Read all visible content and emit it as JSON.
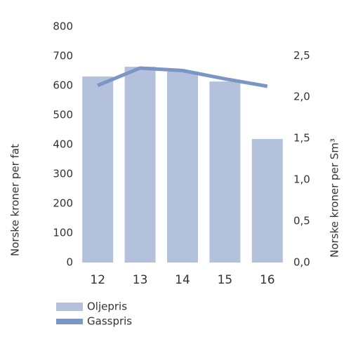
{
  "chart_data": {
    "type": "bar",
    "categories": [
      "12",
      "13",
      "14",
      "15",
      "16"
    ],
    "series": [
      {
        "name": "Oljepris",
        "type": "bar",
        "color": "#b4c1dc",
        "values": [
          631,
          664,
          648,
          614,
          419
        ]
      },
      {
        "name": "Gasspris",
        "type": "line",
        "axis": "y2",
        "color": "#7b96c4",
        "values": [
          2.14,
          2.35,
          2.32,
          2.22,
          2.13
        ]
      }
    ],
    "ylabel": "Norske kroner per fat",
    "y2label": "Norske kroner per Sm³",
    "ylim": [
      0,
      800
    ],
    "yticks": [
      0,
      100,
      200,
      300,
      400,
      500,
      600,
      700,
      800
    ],
    "y2lim": [
      0,
      2.85
    ],
    "y2ticks": [
      {
        "value": 0,
        "label": "0,0"
      },
      {
        "value": 0.5,
        "label": "0,5"
      },
      {
        "value": 1,
        "label": "1,0"
      },
      {
        "value": 1.5,
        "label": "1,5"
      },
      {
        "value": 2,
        "label": "2,0"
      },
      {
        "value": 2.5,
        "label": "2,5"
      }
    ],
    "legend": "bottom-left"
  }
}
